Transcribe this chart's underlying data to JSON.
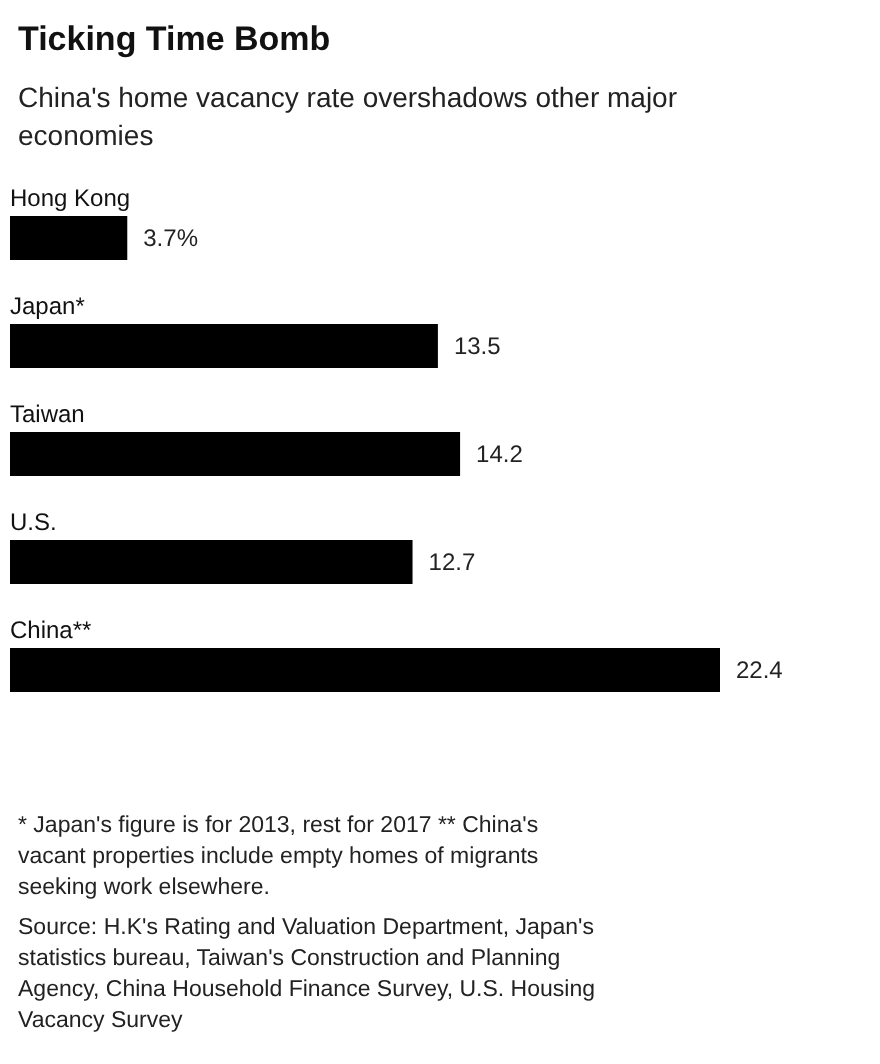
{
  "chart_data": {
    "type": "bar",
    "orientation": "horizontal",
    "title": "Ticking Time Bomb",
    "subtitle": "China's home vacancy rate overshadows other major economies",
    "categories": [
      "Hong Kong",
      "Japan*",
      "Taiwan",
      "U.S.",
      "China**"
    ],
    "values": [
      3.7,
      13.5,
      14.2,
      12.7,
      22.4
    ],
    "value_labels": [
      "3.7%",
      "13.5",
      "14.2",
      "12.7",
      "22.4"
    ],
    "color": "#000000",
    "grid": false,
    "annotations": [
      "* Japan's figure is for 2013, rest for 2017 ** China's vacant properties include empty homes of migrants seeking work elsewhere.",
      "Source: H.K's Rating and Valuation Department, Japan's statistics bureau, Taiwan's Construction and Planning Agency, China Household Finance Survey, U.S. Housing Vacancy Survey"
    ]
  }
}
